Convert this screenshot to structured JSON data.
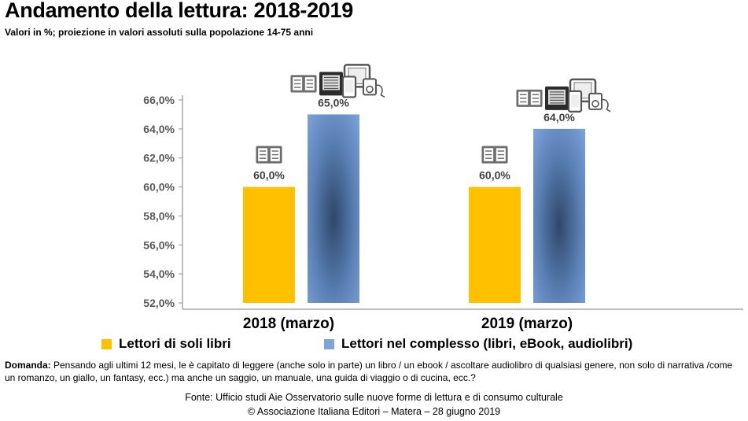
{
  "header": {
    "title": "Andamento della lettura: 2018-2019",
    "subtitle": "Valori in %; proiezione in valori assoluti sulla popolazione 14-75 anni"
  },
  "chart_data": {
    "type": "bar",
    "title": "Andamento della lettura: 2018-2019",
    "subtitle": "Valori in %; proiezione in valori assoluti sulla popolazione 14-75 anni",
    "categories": [
      "2018 (marzo)",
      "2019 (marzo)"
    ],
    "series": [
      {
        "name": "Lettori di soli libri",
        "values": [
          60.0,
          60.0
        ],
        "color": "#FFC000"
      },
      {
        "name": "Lettori nel complesso (libri, eBook, audiolibri)",
        "values": [
          65.0,
          64.0
        ],
        "color": "#7DA4DC"
      }
    ],
    "value_labels": [
      [
        "60,0%",
        "60,0%"
      ],
      [
        "65,0%",
        "64,0%"
      ]
    ],
    "ylim": [
      52,
      66
    ],
    "yticks": [
      52,
      54,
      56,
      58,
      60,
      62,
      64,
      66
    ],
    "ytick_labels": [
      "52,0%",
      "54,0%",
      "56,0%",
      "58,0%",
      "60,0%",
      "62,0%",
      "64,0%",
      "66,0%"
    ],
    "xlabel": "",
    "ylabel": "",
    "grid": false,
    "legend": "bottom",
    "icons": {
      "books_only": [
        "book-icon"
      ],
      "total": [
        "book-icon",
        "ebook-reader-icon",
        "tablet-icon",
        "smartphone-icon",
        "audio-player-icon"
      ]
    }
  },
  "legend": {
    "items": [
      {
        "label": "Lettori di soli libri",
        "color": "#FFC000"
      },
      {
        "label": "Lettori nel complesso (libri, eBook, audiolibri)",
        "color": "#7DA4DC"
      }
    ]
  },
  "question": {
    "label": "Domanda:",
    "text": " Pensando agli ultimi 12 mesi, le è capitato di leggere (anche solo in parte) un libro / un ebook / ascoltare audiolibro di qualsiasi genere, non solo di narrativa /come un romanzo, un giallo, un fantasy, ecc.) ma anche un saggio, un manuale, una guida di viaggio o di cucina, ecc.?"
  },
  "footer": {
    "source": "Fonte:  Ufficio studi Aie Osservatorio sulle nuove forme di lettura e di consumo culturale",
    "copyright": "© Associazione Italiana Editori – Matera – 28 giugno 2019"
  }
}
